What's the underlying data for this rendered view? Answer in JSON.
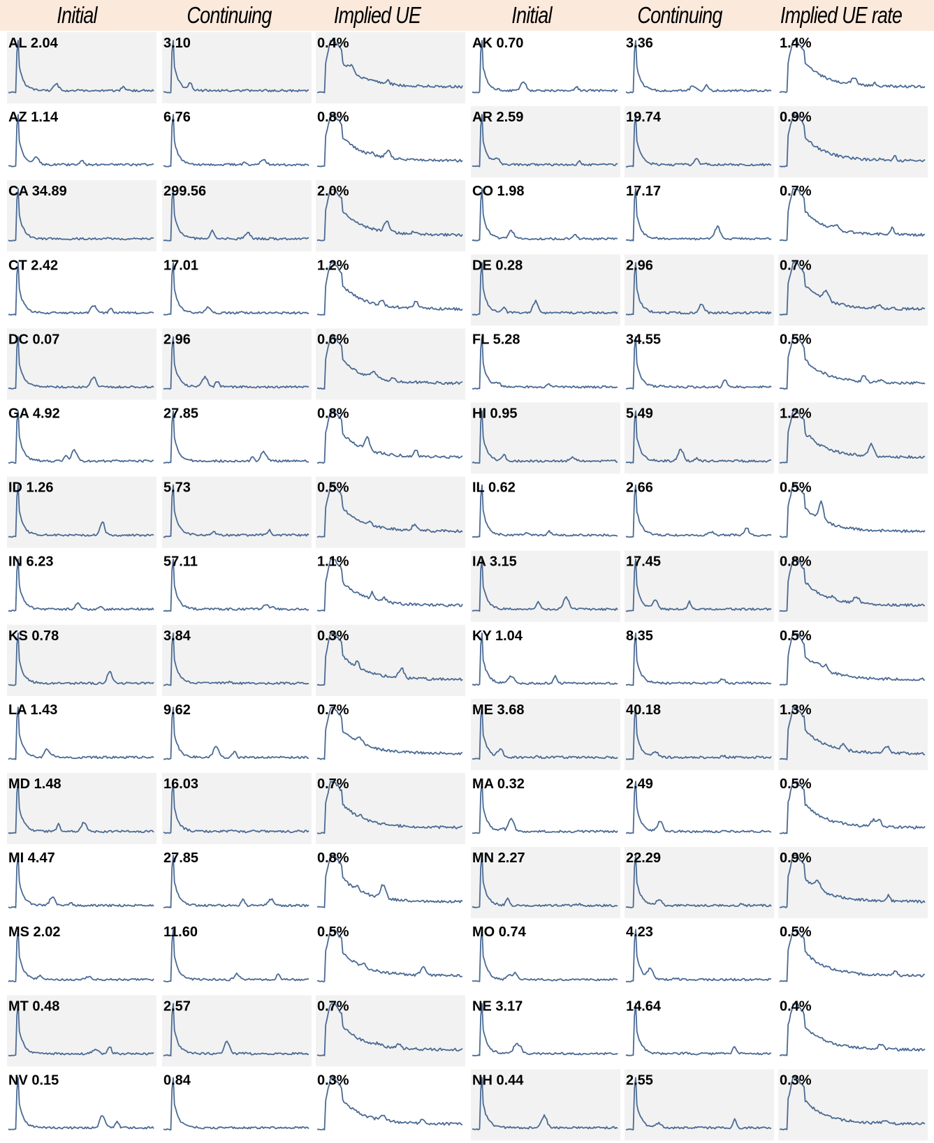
{
  "header": {
    "columns": [
      "Initial",
      "Continuing",
      "Implied UE rate",
      "Initial",
      "Continuing",
      "Implied UE rate"
    ]
  },
  "colors": {
    "line": "#4a6a94",
    "shade": "#f2f2f2",
    "header_bg": "#fbe9dc"
  },
  "chart_data": {
    "type": "line",
    "description_of_grid": "small multiples: state rows, each with initial claims, continuing claims, implied unemployment rate sparklines",
    "states": [
      {
        "state": "AL",
        "initial": "2.04",
        "continuing": "3.10",
        "ue_rate": "0.4%",
        "shaded": true
      },
      {
        "state": "AK",
        "initial": "0.70",
        "continuing": "3.36",
        "ue_rate": "1.4%",
        "shaded": false
      },
      {
        "state": "AZ",
        "initial": "1.14",
        "continuing": "6.76",
        "ue_rate": "0.8%",
        "shaded": false
      },
      {
        "state": "AR",
        "initial": "2.59",
        "continuing": "19.74",
        "ue_rate": "0.9%",
        "shaded": true
      },
      {
        "state": "CA",
        "initial": "34.89",
        "continuing": "299.56",
        "ue_rate": "2.0%",
        "shaded": true
      },
      {
        "state": "CO",
        "initial": "1.98",
        "continuing": "17.17",
        "ue_rate": "0.7%",
        "shaded": false
      },
      {
        "state": "CT",
        "initial": "2.42",
        "continuing": "17.01",
        "ue_rate": "1.2%",
        "shaded": false
      },
      {
        "state": "DE",
        "initial": "0.28",
        "continuing": "2.96",
        "ue_rate": "0.7%",
        "shaded": true
      },
      {
        "state": "DC",
        "initial": "0.07",
        "continuing": "2.96",
        "ue_rate": "0.6%",
        "shaded": true
      },
      {
        "state": "FL",
        "initial": "5.28",
        "continuing": "34.55",
        "ue_rate": "0.5%",
        "shaded": false
      },
      {
        "state": "GA",
        "initial": "4.92",
        "continuing": "27.85",
        "ue_rate": "0.8%",
        "shaded": false
      },
      {
        "state": "HI",
        "initial": "0.95",
        "continuing": "5.49",
        "ue_rate": "1.2%",
        "shaded": true
      },
      {
        "state": "ID",
        "initial": "1.26",
        "continuing": "5.73",
        "ue_rate": "0.5%",
        "shaded": true
      },
      {
        "state": "IL",
        "initial": "0.62",
        "continuing": "2.66",
        "ue_rate": "0.5%",
        "shaded": false
      },
      {
        "state": "IN",
        "initial": "6.23",
        "continuing": "57.11",
        "ue_rate": "1.1%",
        "shaded": false
      },
      {
        "state": "IA",
        "initial": "3.15",
        "continuing": "17.45",
        "ue_rate": "0.8%",
        "shaded": true
      },
      {
        "state": "KS",
        "initial": "0.78",
        "continuing": "3.84",
        "ue_rate": "0.3%",
        "shaded": true
      },
      {
        "state": "KY",
        "initial": "1.04",
        "continuing": "8.35",
        "ue_rate": "0.5%",
        "shaded": false
      },
      {
        "state": "LA",
        "initial": "1.43",
        "continuing": "9.62",
        "ue_rate": "0.7%",
        "shaded": false
      },
      {
        "state": "ME",
        "initial": "3.68",
        "continuing": "40.18",
        "ue_rate": "1.3%",
        "shaded": true
      },
      {
        "state": "MD",
        "initial": "1.48",
        "continuing": "16.03",
        "ue_rate": "0.7%",
        "shaded": true
      },
      {
        "state": "MA",
        "initial": "0.32",
        "continuing": "2.49",
        "ue_rate": "0.5%",
        "shaded": false
      },
      {
        "state": "MI",
        "initial": "4.47",
        "continuing": "27.85",
        "ue_rate": "0.8%",
        "shaded": false
      },
      {
        "state": "MN",
        "initial": "2.27",
        "continuing": "22.29",
        "ue_rate": "0.9%",
        "shaded": true
      },
      {
        "state": "MS",
        "initial": "2.02",
        "continuing": "11.60",
        "ue_rate": "0.5%",
        "shaded": false
      },
      {
        "state": "MO",
        "initial": "0.74",
        "continuing": "4.23",
        "ue_rate": "0.5%",
        "shaded": false
      },
      {
        "state": "MT",
        "initial": "0.48",
        "continuing": "2.57",
        "ue_rate": "0.7%",
        "shaded": true
      },
      {
        "state": "NE",
        "initial": "3.17",
        "continuing": "14.64",
        "ue_rate": "0.4%",
        "shaded": false
      },
      {
        "state": "NV",
        "initial": "0.15",
        "continuing": "0.84",
        "ue_rate": "0.3%",
        "shaded": false
      },
      {
        "state": "NH",
        "initial": "0.44",
        "continuing": "2.55",
        "ue_rate": "0.3%",
        "shaded": true
      }
    ]
  }
}
